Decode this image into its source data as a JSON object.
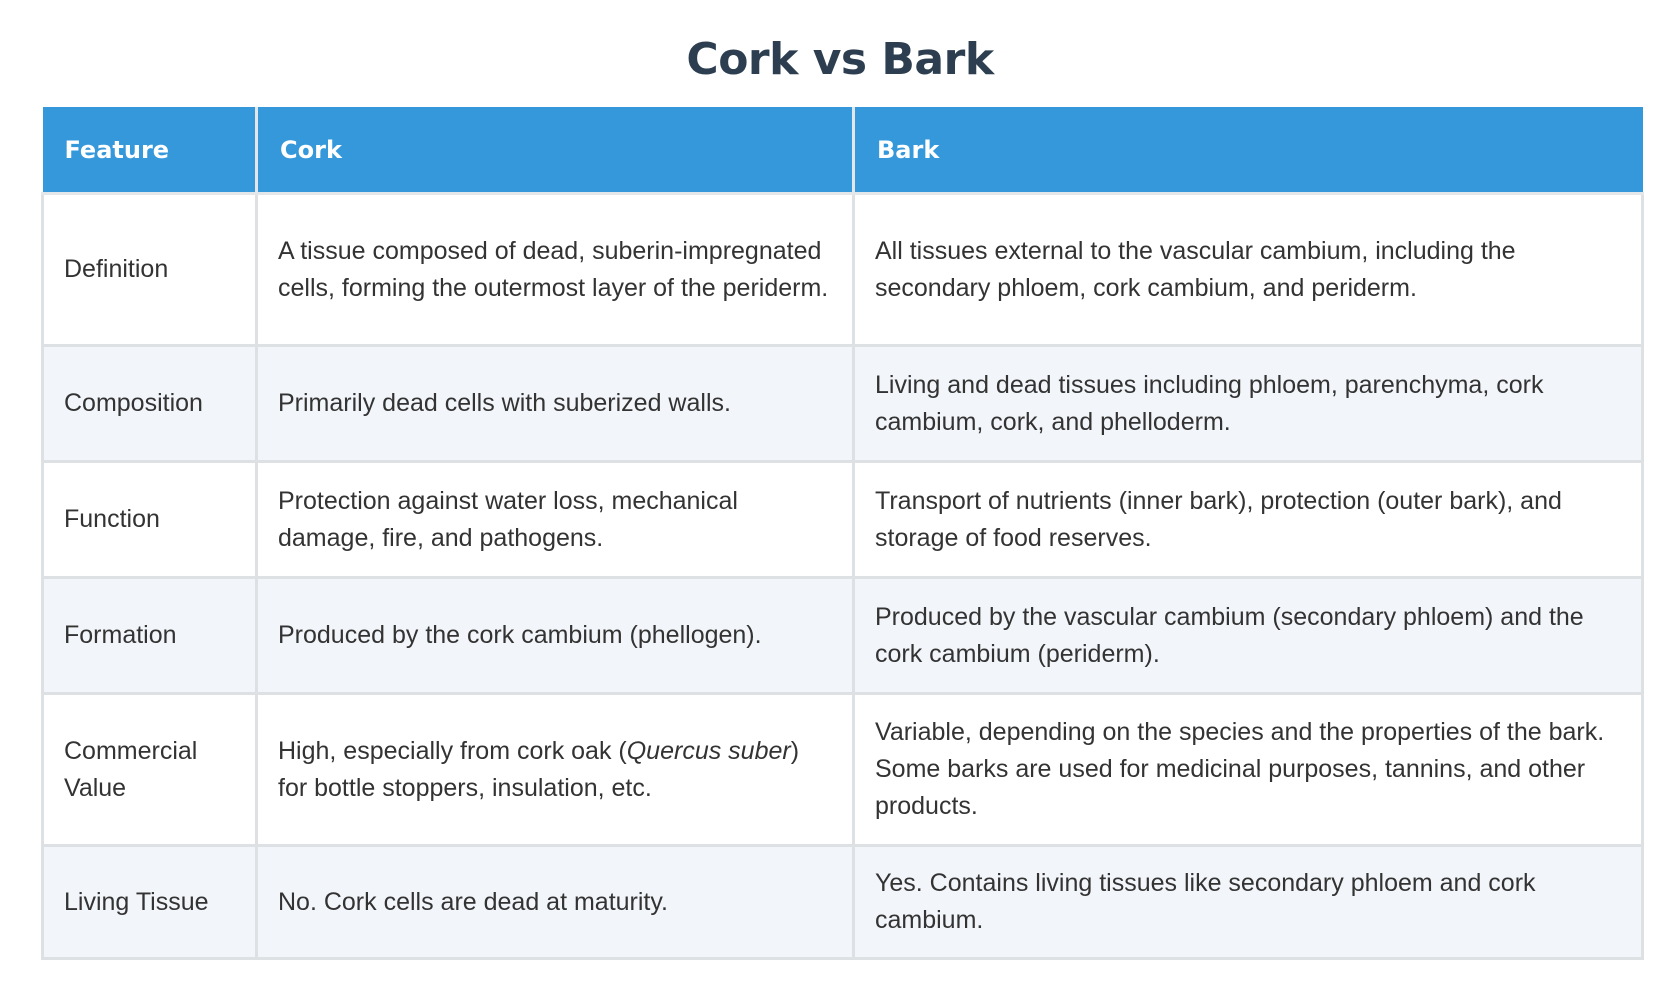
{
  "title": "Cork vs Bark",
  "table": {
    "headers": [
      "Feature",
      "Cork",
      "Bark"
    ],
    "rows": [
      {
        "feature": "Definition",
        "cork": "A tissue composed of dead, suberin-impregnated cells, forming the outermost layer of the periderm.",
        "bark": "All tissues external to the vascular cambium, including the secondary phloem, cork cambium, and periderm."
      },
      {
        "feature": "Composition",
        "cork": "Primarily dead cells with suberized walls.",
        "bark": "Living and dead tissues including phloem, parenchyma, cork cambium, cork, and phelloderm."
      },
      {
        "feature": "Function",
        "cork": "Protection against water loss, mechanical damage, fire, and pathogens.",
        "bark": "Transport of nutrients (inner bark), protection (outer bark), and storage of food reserves."
      },
      {
        "feature": "Formation",
        "cork": "Produced by the cork cambium (phellogen).",
        "bark": "Produced by the vascular cambium (secondary phloem) and the cork cambium (periderm)."
      },
      {
        "feature": "Commercial Value",
        "cork_before": "High, especially from cork oak (",
        "cork_species": "Quercus suber",
        "cork_after": ") for bottle stoppers, insulation, etc.",
        "bark": "Variable, depending on the species and the properties of the bark. Some barks are used for medicinal purposes, tannins, and other products."
      },
      {
        "feature": "Living Tissue",
        "cork": "No. Cork cells are dead at maturity.",
        "bark": "Yes. Contains living tissues like secondary phloem and cork cambium."
      }
    ]
  },
  "colors": {
    "header_bg": "#3498db",
    "title_color": "#2c3e50",
    "stripe_bg": "#f2f5f9",
    "border": "#dde1e4"
  }
}
